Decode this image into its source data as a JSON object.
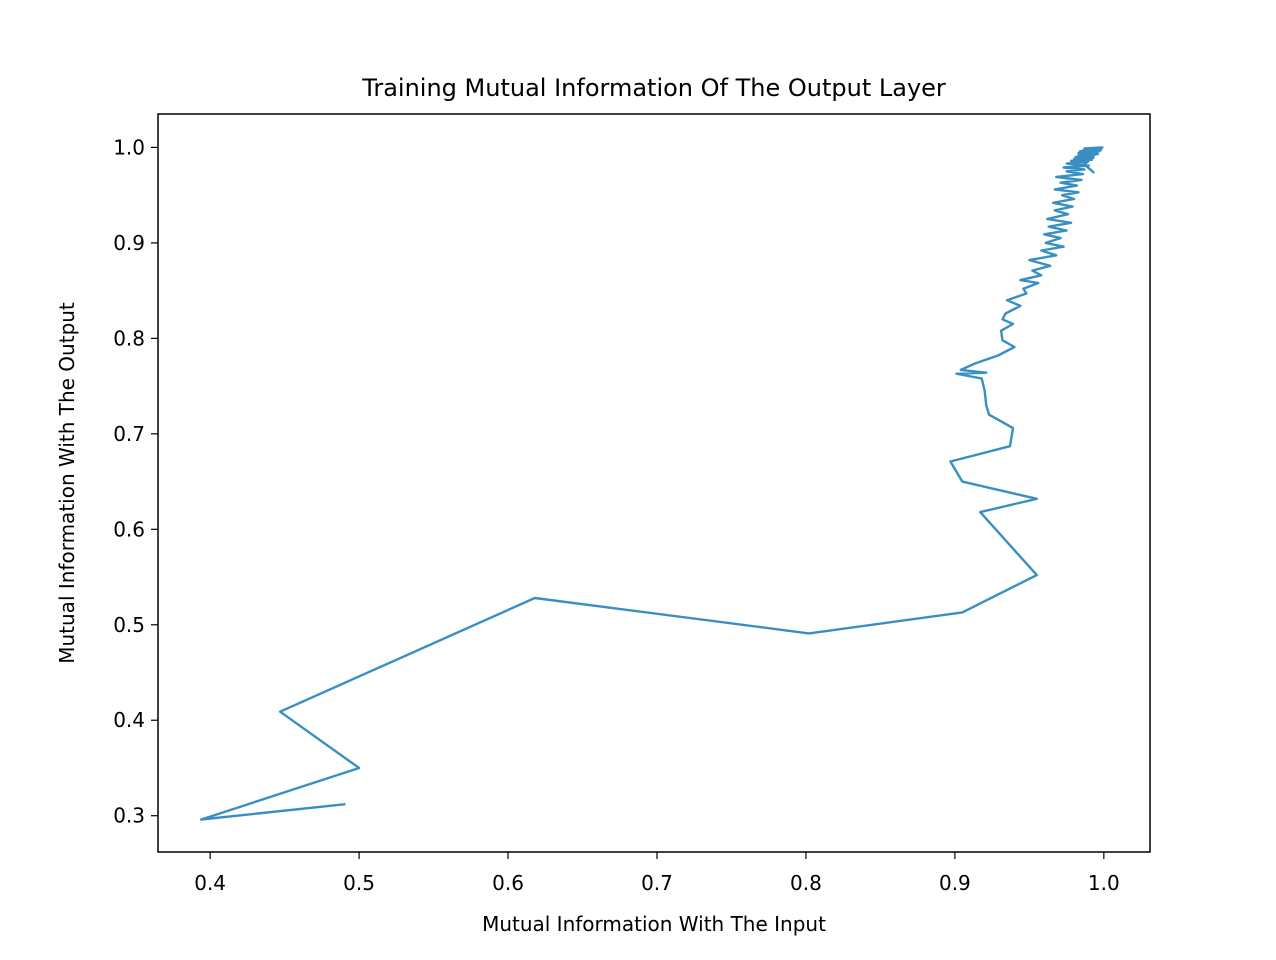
{
  "chart_data": {
    "type": "line",
    "title": "Training Mutual Information Of The Output Layer",
    "xlabel": "Mutual Information With The Input",
    "ylabel": "Mutual Information With The Output",
    "xlim": [
      0.365,
      1.031
    ],
    "ylim": [
      0.262,
      1.035
    ],
    "xticks": [
      0.4,
      0.5,
      0.6,
      0.7,
      0.8,
      0.9,
      1.0
    ],
    "xtick_labels": [
      "0.4",
      "0.5",
      "0.6",
      "0.7",
      "0.8",
      "0.9",
      "1.0"
    ],
    "yticks": [
      0.3,
      0.4,
      0.5,
      0.6,
      0.7,
      0.8,
      0.9,
      1.0
    ],
    "ytick_labels": [
      "0.3",
      "0.4",
      "0.5",
      "0.6",
      "0.7",
      "0.8",
      "0.9",
      "1.0"
    ],
    "grid": false,
    "legend": "none",
    "series": [
      {
        "color": "#3a8fc2",
        "x": [
          0.49,
          0.394,
          0.5,
          0.447,
          0.618,
          0.802,
          0.905,
          0.955,
          0.917,
          0.955,
          0.905,
          0.897,
          0.937,
          0.939,
          0.923,
          0.921,
          0.92,
          0.918,
          0.901,
          0.921,
          0.904,
          0.914,
          0.929,
          0.94,
          0.932,
          0.931,
          0.939,
          0.932,
          0.934,
          0.944,
          0.935,
          0.948,
          0.946,
          0.956,
          0.944,
          0.958,
          0.952,
          0.964,
          0.95,
          0.968,
          0.958,
          0.973,
          0.961,
          0.971,
          0.96,
          0.975,
          0.963,
          0.978,
          0.962,
          0.976,
          0.967,
          0.979,
          0.966,
          0.98,
          0.972,
          0.983,
          0.967,
          0.982,
          0.971,
          0.985,
          0.968,
          0.986,
          0.975,
          0.987,
          0.973,
          0.99,
          0.975,
          0.989,
          0.978,
          0.992,
          0.98,
          0.993,
          0.981,
          0.991,
          0.983,
          0.996,
          0.983,
          0.994,
          0.986,
          0.997,
          0.984,
          0.998,
          0.986,
          0.993,
          0.988,
          0.995,
          0.987,
          0.999,
          0.987,
          0.993
        ],
        "y": [
          0.312,
          0.296,
          0.35,
          0.409,
          0.528,
          0.491,
          0.513,
          0.552,
          0.618,
          0.632,
          0.65,
          0.671,
          0.687,
          0.706,
          0.72,
          0.73,
          0.745,
          0.758,
          0.763,
          0.764,
          0.767,
          0.774,
          0.782,
          0.791,
          0.798,
          0.808,
          0.815,
          0.82,
          0.826,
          0.834,
          0.84,
          0.847,
          0.852,
          0.858,
          0.861,
          0.866,
          0.871,
          0.876,
          0.882,
          0.887,
          0.892,
          0.896,
          0.9,
          0.905,
          0.909,
          0.913,
          0.917,
          0.921,
          0.925,
          0.93,
          0.934,
          0.938,
          0.942,
          0.946,
          0.95,
          0.953,
          0.956,
          0.96,
          0.963,
          0.966,
          0.969,
          0.972,
          0.975,
          0.977,
          0.979,
          0.981,
          0.983,
          0.985,
          0.986,
          0.987,
          0.988,
          0.989,
          0.99,
          0.991,
          0.992,
          0.993,
          0.994,
          0.995,
          0.995,
          0.996,
          0.996,
          0.997,
          0.997,
          0.998,
          0.998,
          0.999,
          0.999,
          1.0,
          0.982,
          0.974
        ]
      }
    ]
  }
}
